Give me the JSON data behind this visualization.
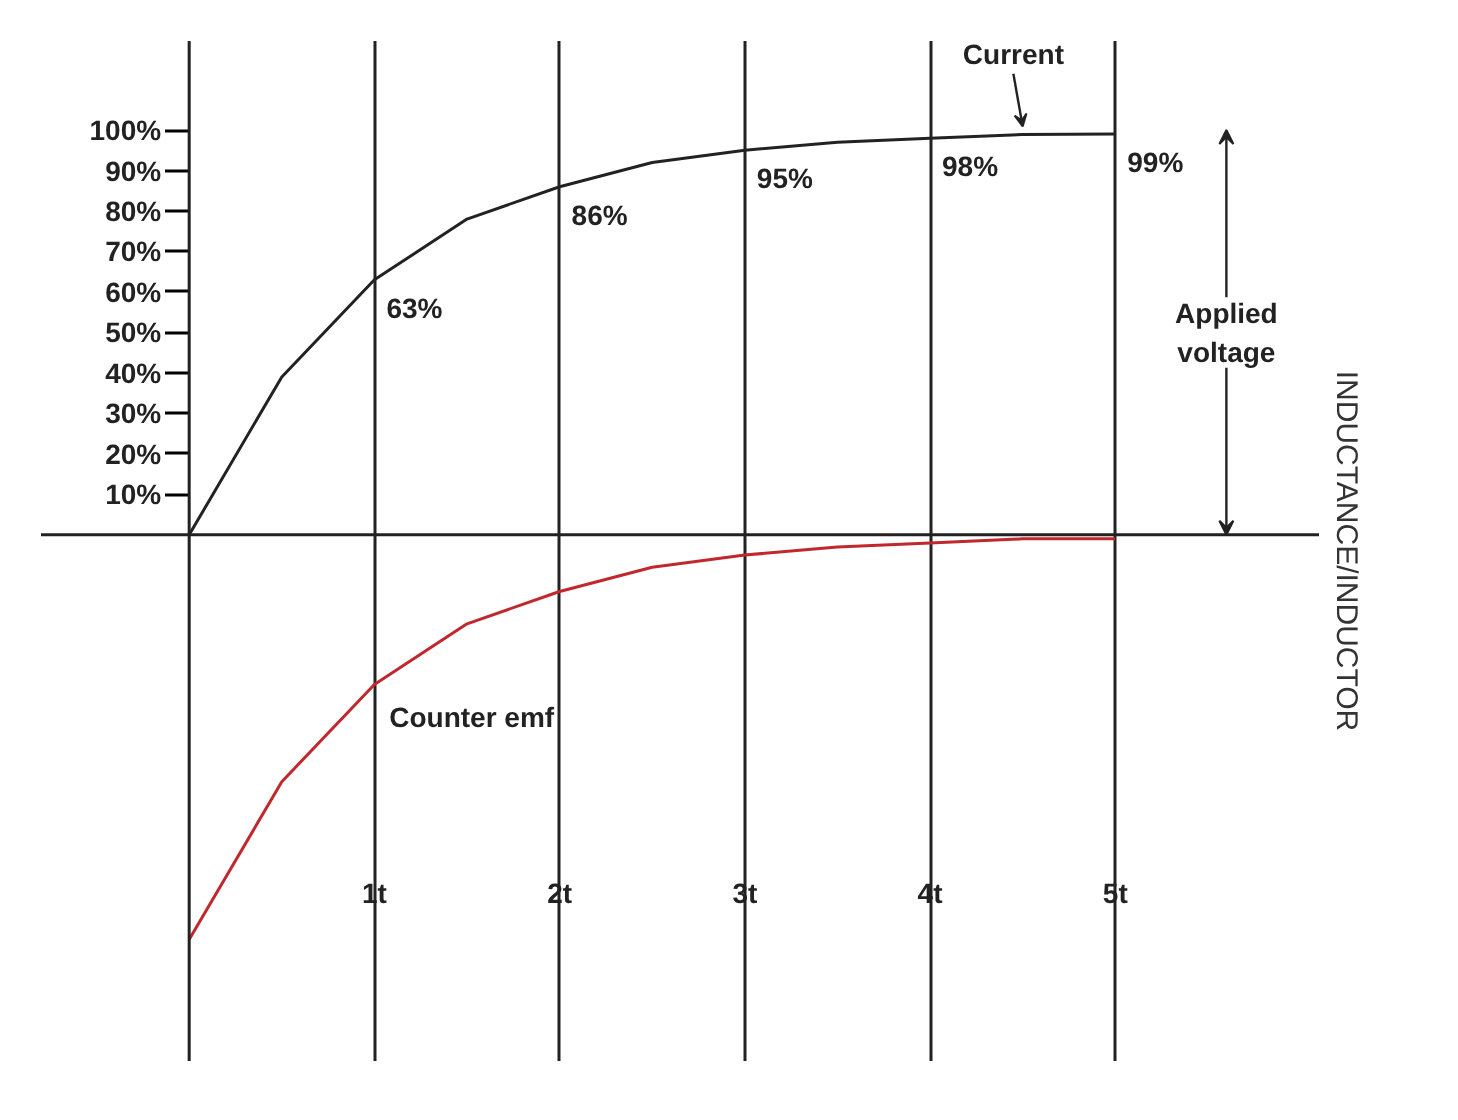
{
  "chart_data": {
    "type": "line",
    "series": [
      {
        "name": "Current",
        "color": "#222222",
        "x": [
          0,
          0.5,
          1,
          1.5,
          2,
          2.5,
          3,
          3.5,
          4,
          4.5,
          5
        ],
        "values": [
          0,
          39,
          63,
          78,
          86,
          92,
          95,
          97,
          98,
          98.9,
          99
        ],
        "value_labels": [
          null,
          null,
          "63%",
          null,
          "86%",
          null,
          "95%",
          null,
          "98%",
          null,
          "99%"
        ]
      },
      {
        "name": "Counter emf",
        "color": "#c0282d",
        "x": [
          0,
          0.5,
          1,
          1.5,
          2,
          2.5,
          3,
          3.5,
          4,
          4.5,
          5
        ],
        "values": [
          -100,
          -61,
          -37,
          -22,
          -14,
          -8,
          -5,
          -3,
          -2,
          -1,
          -1
        ]
      }
    ],
    "xlim": [
      -0.8,
      6.1
    ],
    "ylim": [
      -130,
      122
    ],
    "xticks": [
      {
        "value": 1,
        "label": "1t"
      },
      {
        "value": 2,
        "label": "2t"
      },
      {
        "value": 3,
        "label": "3t"
      },
      {
        "value": 4,
        "label": "4t"
      },
      {
        "value": 5,
        "label": "5t"
      }
    ],
    "yticks": [
      {
        "value": 10,
        "label": "10%"
      },
      {
        "value": 20,
        "label": "20%"
      },
      {
        "value": 30,
        "label": "30%"
      },
      {
        "value": 40,
        "label": "40%"
      },
      {
        "value": 50,
        "label": "50%"
      },
      {
        "value": 60,
        "label": "60%"
      },
      {
        "value": 70,
        "label": "70%"
      },
      {
        "value": 80,
        "label": "80%"
      },
      {
        "value": 90,
        "label": "90%"
      },
      {
        "value": 100,
        "label": "100%"
      }
    ],
    "grid": "x",
    "marker": "none",
    "line_style": "solid",
    "annotations": [
      "Applied voltage",
      "INDUCTANCE/INDUCTOR"
    ]
  }
}
